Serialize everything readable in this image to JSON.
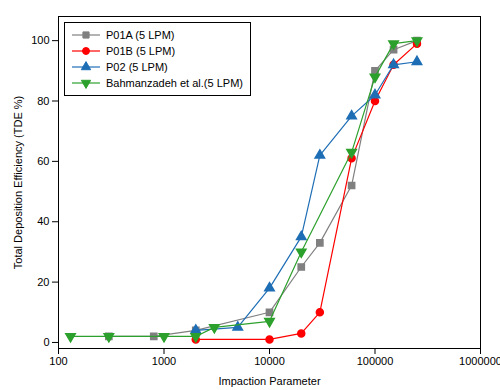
{
  "chart_data": {
    "type": "line",
    "xlabel": "Impaction Parameter",
    "ylabel": "Total Deposition Efficiency (TDE %)",
    "log": "x",
    "xlim": [
      100,
      1000000
    ],
    "xticks": [
      100,
      1000,
      10000,
      100000,
      1000000
    ],
    "ylim": [
      -2,
      108
    ],
    "yticks": [
      0,
      20,
      40,
      60,
      80,
      100
    ],
    "legend": "upper left",
    "series": [
      {
        "name": "P01A (5 LPM)",
        "color": "#808080",
        "marker": "square",
        "x": [
          300,
          800,
          2000,
          10000,
          20000,
          30000,
          60000,
          100000,
          150000,
          250000
        ],
        "values": [
          2,
          2,
          4,
          10,
          25,
          33,
          52,
          90,
          97,
          100
        ]
      },
      {
        "name": "P01B (5 LPM)",
        "color": "#ff0000",
        "marker": "circle",
        "x": [
          2000,
          10000,
          20000,
          30000,
          60000,
          100000,
          150000,
          250000
        ],
        "values": [
          1,
          1,
          3,
          10,
          61,
          80,
          92,
          99
        ]
      },
      {
        "name": "P02 (5 LPM)",
        "color": "#1e6eb5",
        "marker": "triangle-up",
        "x": [
          2000,
          5000,
          10000,
          20000,
          30000,
          60000,
          100000,
          150000,
          250000
        ],
        "values": [
          4,
          5,
          18,
          35,
          62,
          75,
          82,
          92,
          93
        ]
      },
      {
        "name": "Bahmanzadeh et al.(5 LPM)",
        "color": "#2ca02c",
        "marker": "triangle-down",
        "x": [
          130,
          300,
          1000,
          2000,
          3000,
          10000,
          20000,
          60000,
          100000,
          150000,
          250000
        ],
        "values": [
          2,
          2,
          2,
          2,
          5,
          7,
          30,
          63,
          88,
          99,
          100
        ]
      }
    ]
  }
}
